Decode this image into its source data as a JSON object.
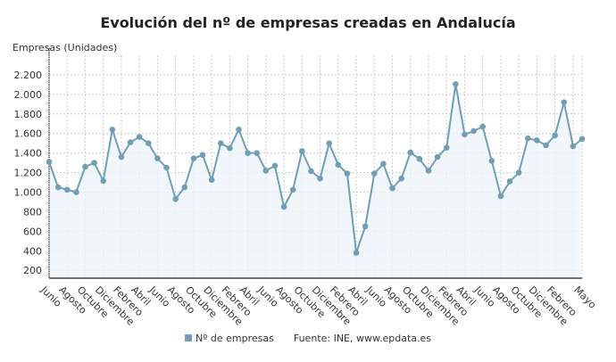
{
  "chart_data": {
    "type": "area",
    "title": "Evolución del nº de empresas creadas en Andalucía",
    "ylabel": "Empresas (Unidades)",
    "xlabel": "",
    "ylim": [
      120,
      2400
    ],
    "yticks": [
      "200",
      "400",
      "600",
      "800",
      "1.000",
      "1.200",
      "1.400",
      "1.600",
      "1.800",
      "2.000",
      "2.200"
    ],
    "ytick_values": [
      200,
      400,
      600,
      800,
      1000,
      1200,
      1400,
      1600,
      1800,
      2000,
      2200
    ],
    "grid": true,
    "legend_position": "bottom",
    "x_tick_labels": [
      "Junio",
      "Agosto",
      "Octubre",
      "Diciembre",
      "Febrero",
      "Abril",
      "Junio",
      "Agosto",
      "Octubre",
      "Diciembre",
      "Febrero",
      "Abril",
      "Junio",
      "Agosto",
      "Octubre",
      "Diciembre",
      "Febrero",
      "Abril",
      "Junio",
      "Agosto",
      "Octubre",
      "Diciembre",
      "Febrero",
      "Abril",
      "Junio",
      "Agosto",
      "Octubre",
      "Diciembre",
      "Febrero",
      "Mayo"
    ],
    "x_tick_indices": [
      0,
      2,
      4,
      6,
      8,
      10,
      12,
      14,
      16,
      18,
      20,
      22,
      24,
      26,
      28,
      30,
      32,
      34,
      36,
      38,
      40,
      42,
      44,
      46,
      48,
      50,
      52,
      54,
      56,
      59
    ],
    "series": [
      {
        "name": "Nº de empresas",
        "color": "#6e9fb5",
        "values": [
          1310,
          1050,
          1025,
          1000,
          1260,
          1300,
          1115,
          1640,
          1360,
          1510,
          1565,
          1500,
          1345,
          1250,
          930,
          1050,
          1345,
          1380,
          1125,
          1500,
          1450,
          1640,
          1400,
          1400,
          1220,
          1270,
          850,
          1025,
          1420,
          1215,
          1140,
          1500,
          1280,
          1190,
          380,
          650,
          1190,
          1290,
          1040,
          1140,
          1405,
          1340,
          1220,
          1360,
          1455,
          2105,
          1590,
          1625,
          1670,
          1320,
          960,
          1110,
          1200,
          1550,
          1530,
          1480,
          1580,
          1920,
          1470,
          1545
        ]
      }
    ]
  },
  "legend": {
    "series_label": "Nº de empresas",
    "source": "Fuente: INE, www.epdata.es"
  }
}
